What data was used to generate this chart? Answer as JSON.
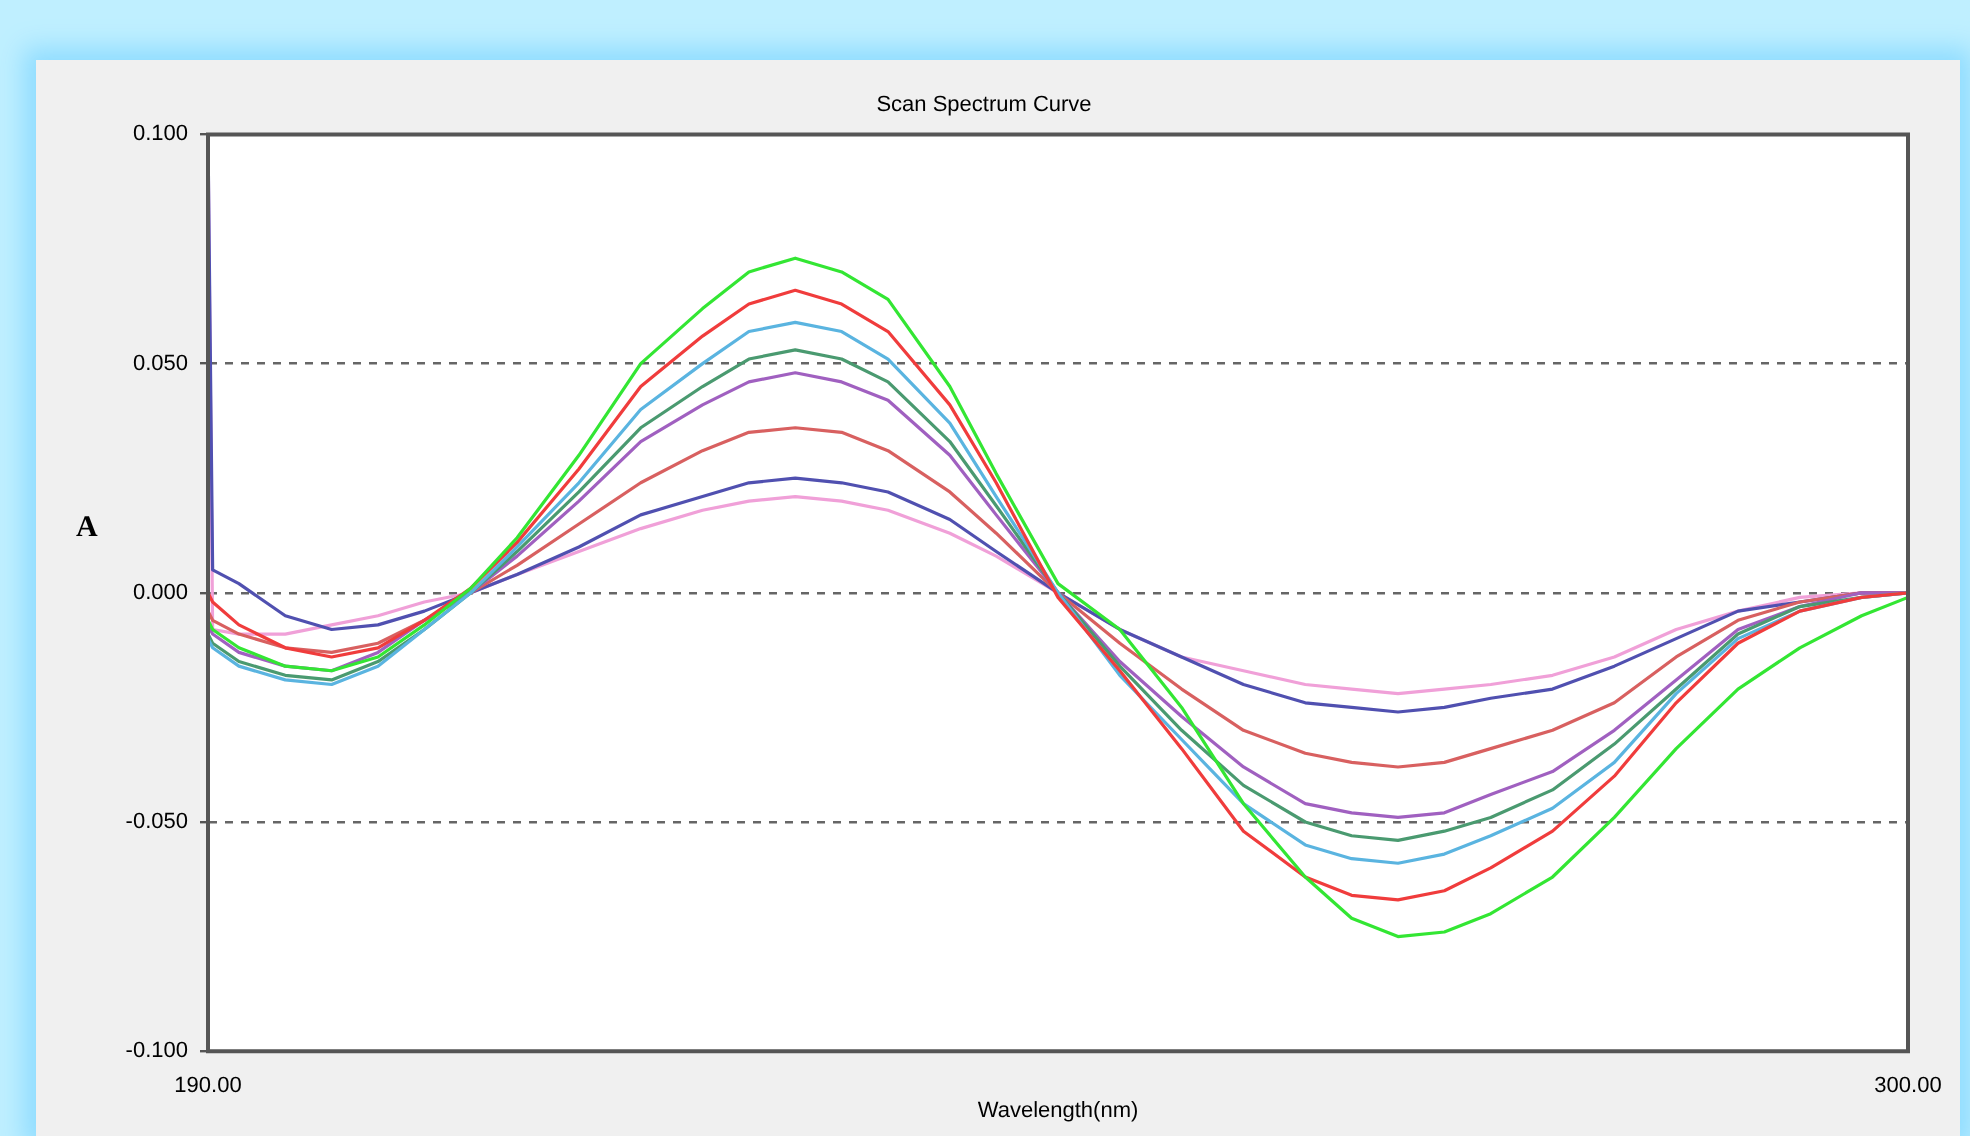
{
  "chart_data": {
    "type": "line",
    "title": "Scan Spectrum Curve",
    "xlabel": "Wavelength(nm)",
    "ylabel": "A",
    "x": [
      190,
      190.3,
      192,
      195,
      198,
      201,
      204,
      207,
      210,
      214,
      218,
      222,
      225,
      228,
      231,
      234,
      238,
      241,
      245,
      249,
      253,
      257,
      261,
      264,
      267,
      270,
      273,
      277,
      281,
      285,
      289,
      293,
      297,
      300
    ],
    "series": [
      {
        "color": "#33e633",
        "values": [
          -0.006,
          -0.008,
          -0.012,
          -0.016,
          -0.017,
          -0.014,
          -0.007,
          0.001,
          0.012,
          0.03,
          0.05,
          0.062,
          0.07,
          0.073,
          0.07,
          0.064,
          0.045,
          0.026,
          0.002,
          -0.008,
          -0.025,
          -0.046,
          -0.062,
          -0.071,
          -0.075,
          -0.074,
          -0.07,
          -0.062,
          -0.049,
          -0.034,
          -0.021,
          -0.012,
          -0.005,
          -0.001
        ]
      },
      {
        "color": "#f03c3c",
        "values": [
          0.0,
          -0.002,
          -0.007,
          -0.012,
          -0.014,
          -0.012,
          -0.006,
          0.001,
          0.011,
          0.027,
          0.045,
          0.056,
          0.063,
          0.066,
          0.063,
          0.057,
          0.041,
          0.024,
          -0.001,
          -0.017,
          -0.034,
          -0.052,
          -0.062,
          -0.066,
          -0.067,
          -0.065,
          -0.06,
          -0.052,
          -0.04,
          -0.024,
          -0.011,
          -0.004,
          -0.001,
          0.0
        ]
      },
      {
        "color": "#5ab4e0",
        "values": [
          -0.01,
          -0.012,
          -0.016,
          -0.019,
          -0.02,
          -0.016,
          -0.008,
          0.0,
          0.01,
          0.024,
          0.04,
          0.05,
          0.057,
          0.059,
          0.057,
          0.051,
          0.037,
          0.021,
          0.0,
          -0.018,
          -0.032,
          -0.046,
          -0.055,
          -0.058,
          -0.059,
          -0.057,
          -0.053,
          -0.047,
          -0.037,
          -0.022,
          -0.01,
          -0.004,
          -0.001,
          0.0
        ]
      },
      {
        "color": "#4a9a70",
        "values": [
          -0.009,
          -0.011,
          -0.015,
          -0.018,
          -0.019,
          -0.015,
          -0.008,
          0.0,
          0.009,
          0.022,
          0.036,
          0.045,
          0.051,
          0.053,
          0.051,
          0.046,
          0.033,
          0.019,
          0.0,
          -0.016,
          -0.03,
          -0.042,
          -0.05,
          -0.053,
          -0.054,
          -0.052,
          -0.049,
          -0.043,
          -0.033,
          -0.021,
          -0.009,
          -0.003,
          -0.001,
          0.0
        ]
      },
      {
        "color": "#a060c0",
        "values": [
          -0.007,
          -0.009,
          -0.013,
          -0.016,
          -0.017,
          -0.013,
          -0.006,
          0.0,
          0.008,
          0.02,
          0.033,
          0.041,
          0.046,
          0.048,
          0.046,
          0.042,
          0.03,
          0.017,
          0.0,
          -0.015,
          -0.027,
          -0.038,
          -0.046,
          -0.048,
          -0.049,
          -0.048,
          -0.044,
          -0.039,
          -0.03,
          -0.019,
          -0.008,
          -0.003,
          0.0,
          0.0
        ]
      },
      {
        "color": "#d86060",
        "values": [
          -0.004,
          -0.006,
          -0.009,
          -0.012,
          -0.013,
          -0.011,
          -0.006,
          0.0,
          0.006,
          0.015,
          0.024,
          0.031,
          0.035,
          0.036,
          0.035,
          0.031,
          0.022,
          0.013,
          0.0,
          -0.011,
          -0.021,
          -0.03,
          -0.035,
          -0.037,
          -0.038,
          -0.037,
          -0.034,
          -0.03,
          -0.024,
          -0.014,
          -0.006,
          -0.002,
          0.0,
          0.0
        ]
      },
      {
        "color": "#5050b0",
        "values": [
          0.1,
          0.005,
          0.002,
          -0.005,
          -0.008,
          -0.007,
          -0.004,
          0.0,
          0.004,
          0.01,
          0.017,
          0.021,
          0.024,
          0.025,
          0.024,
          0.022,
          0.016,
          0.009,
          0.0,
          -0.008,
          -0.014,
          -0.02,
          -0.024,
          -0.025,
          -0.026,
          -0.025,
          -0.023,
          -0.021,
          -0.016,
          -0.01,
          -0.004,
          -0.002,
          0.0,
          0.0
        ]
      },
      {
        "color": "#f0a0d8",
        "values": [
          0.1,
          -0.008,
          -0.009,
          -0.009,
          -0.007,
          -0.005,
          -0.002,
          0.0,
          0.004,
          0.009,
          0.014,
          0.018,
          0.02,
          0.021,
          0.02,
          0.018,
          0.013,
          0.008,
          0.0,
          -0.008,
          -0.014,
          -0.017,
          -0.02,
          -0.021,
          -0.022,
          -0.021,
          -0.02,
          -0.018,
          -0.014,
          -0.008,
          -0.004,
          -0.001,
          0.0,
          0.0
        ]
      }
    ],
    "xlim": [
      190,
      300
    ],
    "xticks": [
      {
        "value": 190,
        "label": "190.00"
      },
      {
        "value": 300,
        "label": "300.00"
      }
    ],
    "ylim": [
      -0.1,
      0.1
    ],
    "yticks": [
      {
        "value": -0.1,
        "label": "-0.100"
      },
      {
        "value": -0.05,
        "label": "-0.050"
      },
      {
        "value": 0,
        "label": "0.000"
      },
      {
        "value": 0.05,
        "label": "0.050"
      },
      {
        "value": 0.1,
        "label": "0.100"
      }
    ],
    "grid": "y"
  }
}
